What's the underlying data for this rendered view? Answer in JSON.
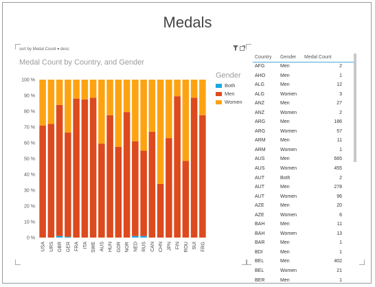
{
  "page": {
    "title": "Medals"
  },
  "chart_card": {
    "sort_label": "sort by  Medal Count  ▾  desc",
    "filter_icon": "funnel-icon",
    "popout_icon": "popout-icon"
  },
  "chart_data": {
    "type": "bar",
    "stacked": "100%",
    "title": "Medal Count by Country, and Gender",
    "categories": [
      "USA",
      "URS",
      "GBR",
      "GER",
      "FRA",
      "ITA",
      "SWE",
      "AUS",
      "HUN",
      "GDR",
      "NOR",
      "NED",
      "RUS",
      "CAN",
      "CHN",
      "JPN",
      "FIN",
      "ROU",
      "SUI",
      "FRG"
    ],
    "series": [
      {
        "name": "Both",
        "color": "#1ea7e1",
        "values": [
          0,
          0,
          1,
          0.5,
          0,
          0,
          0,
          0,
          0,
          0,
          0,
          1,
          1,
          0,
          0,
          0,
          0,
          0,
          0,
          0
        ]
      },
      {
        "name": "Men",
        "color": "#dd4a1e",
        "values": [
          71,
          72,
          83,
          66,
          88,
          87.5,
          88.5,
          59.5,
          77.5,
          57.5,
          79.5,
          60,
          54,
          67,
          34,
          63,
          89.5,
          48.5,
          88.5,
          77.5
        ]
      },
      {
        "name": "Women",
        "color": "#fda312",
        "values": [
          29,
          28,
          16,
          33.5,
          12,
          12.5,
          11.5,
          40.5,
          22.5,
          42.5,
          20.5,
          39,
          45,
          33,
          66,
          37,
          10.5,
          51.5,
          11.5,
          22.5
        ]
      }
    ],
    "ytick_labels": [
      "0 %",
      "10 %",
      "20 %",
      "30 %",
      "40 %",
      "50 %",
      "60 %",
      "70 %",
      "80 %",
      "90 %",
      "100 %"
    ],
    "ylim": [
      0,
      100
    ],
    "legend": {
      "title": "Gender",
      "position": "right"
    },
    "grid": false
  },
  "table": {
    "columns": [
      "Country",
      "Gender",
      "Medal Count"
    ],
    "rows": [
      [
        "AFG",
        "Men",
        "2"
      ],
      [
        "AHO",
        "Men",
        "1"
      ],
      [
        "ALG",
        "Men",
        "12"
      ],
      [
        "ALG",
        "Women",
        "3"
      ],
      [
        "ANZ",
        "Men",
        "27"
      ],
      [
        "ANZ",
        "Women",
        "2"
      ],
      [
        "ARG",
        "Men",
        "186"
      ],
      [
        "ARG",
        "Women",
        "57"
      ],
      [
        "ARM",
        "Men",
        "11"
      ],
      [
        "ARM",
        "Women",
        "1"
      ],
      [
        "AUS",
        "Men",
        "665"
      ],
      [
        "AUS",
        "Women",
        "455"
      ],
      [
        "AUT",
        "Both",
        "2"
      ],
      [
        "AUT",
        "Men",
        "278"
      ],
      [
        "AUT",
        "Women",
        "96"
      ],
      [
        "AZE",
        "Men",
        "20"
      ],
      [
        "AZE",
        "Women",
        "6"
      ],
      [
        "BAH",
        "Men",
        "11"
      ],
      [
        "BAH",
        "Women",
        "13"
      ],
      [
        "BAR",
        "Men",
        "1"
      ],
      [
        "BDI",
        "Men",
        "1"
      ],
      [
        "BEL",
        "Men",
        "402"
      ],
      [
        "BEL",
        "Women",
        "21"
      ],
      [
        "BER",
        "Men",
        "1"
      ]
    ]
  }
}
